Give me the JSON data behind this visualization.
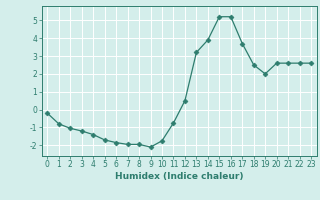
{
  "x": [
    0,
    1,
    2,
    3,
    4,
    5,
    6,
    7,
    8,
    9,
    10,
    11,
    12,
    13,
    14,
    15,
    16,
    17,
    18,
    19,
    20,
    21,
    22,
    23
  ],
  "y": [
    -0.2,
    -0.8,
    -1.05,
    -1.2,
    -1.4,
    -1.7,
    -1.85,
    -1.95,
    -1.95,
    -2.1,
    -1.75,
    -0.75,
    0.5,
    3.2,
    3.9,
    5.2,
    5.2,
    3.7,
    2.5,
    2.0,
    2.6,
    2.6,
    2.6,
    2.6
  ],
  "line_color": "#2e7d6e",
  "marker": "D",
  "marker_size": 2.5,
  "bg_color": "#d4eeeb",
  "grid_color": "#ffffff",
  "xlabel": "Humidex (Indice chaleur)",
  "xlim": [
    -0.5,
    23.5
  ],
  "ylim": [
    -2.6,
    5.8
  ],
  "yticks": [
    -2,
    -1,
    0,
    1,
    2,
    3,
    4,
    5
  ],
  "xticks": [
    0,
    1,
    2,
    3,
    4,
    5,
    6,
    7,
    8,
    9,
    10,
    11,
    12,
    13,
    14,
    15,
    16,
    17,
    18,
    19,
    20,
    21,
    22,
    23
  ],
  "tick_color": "#2e7d6e",
  "label_color": "#2e7d6e",
  "tick_fontsize": 5.5,
  "xlabel_fontsize": 6.5
}
